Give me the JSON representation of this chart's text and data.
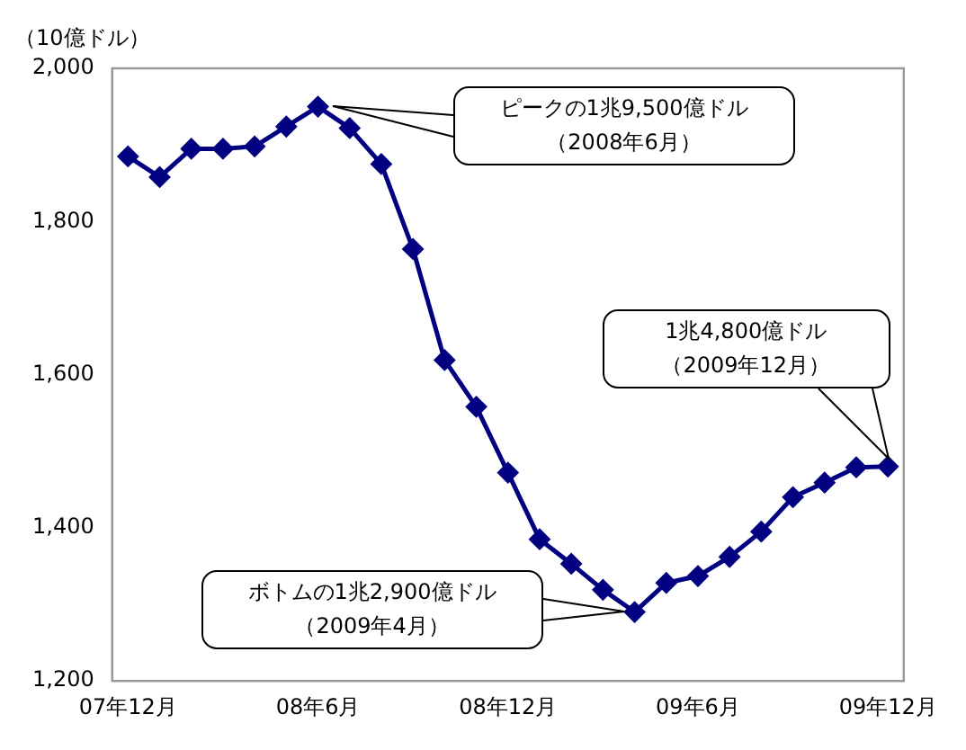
{
  "chart_data": {
    "type": "line",
    "ylabel": "（10億ドル）",
    "categories": [
      "07年12月",
      null,
      null,
      null,
      null,
      null,
      "08年6月",
      null,
      null,
      null,
      null,
      null,
      "08年12月",
      null,
      null,
      null,
      null,
      null,
      "09年6月",
      null,
      null,
      null,
      null,
      null,
      "09年12月"
    ],
    "series": [
      {
        "color": "#000080",
        "values": [
          1885,
          1858,
          1895,
          1895,
          1898,
          1924,
          1950,
          1922,
          1875,
          1764,
          1619,
          1558,
          1472,
          1385,
          1353,
          1319,
          1290,
          1328,
          1337,
          1362,
          1395,
          1440,
          1459,
          1479,
          1480
        ]
      }
    ],
    "ylim": [
      1200,
      2000
    ],
    "yticks": [
      {
        "value": 1200,
        "label": "1,200"
      },
      {
        "value": 1400,
        "label": "1,400"
      },
      {
        "value": 1600,
        "label": "1,600"
      },
      {
        "value": 1800,
        "label": "1,800"
      },
      {
        "value": 2000,
        "label": "2,000"
      }
    ],
    "grid": false,
    "legend": false,
    "marker": "diamond",
    "line_style": "solid",
    "annotations": [
      "ピークの1兆9,500億ドル（2008年6月）",
      "ボトムの1兆2,900億ドル（2009年4月）",
      "1兆4,800億ドル（2009年12月）"
    ]
  }
}
